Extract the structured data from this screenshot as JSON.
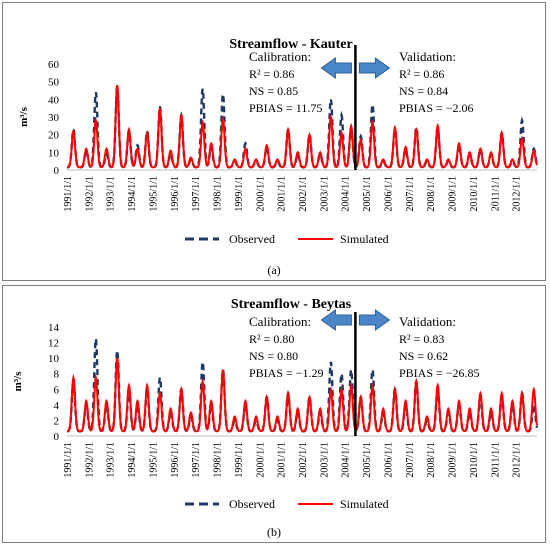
{
  "chart_data": [
    {
      "type": "line",
      "title": "Streamflow - Kauter",
      "ylabel": "m³/s",
      "ylim": [
        0,
        60
      ],
      "yticks": [
        0,
        10,
        20,
        30,
        40,
        50,
        60
      ],
      "xlim": [
        1991.0,
        2013.0
      ],
      "xticklabels": [
        "1991/1/1",
        "1992/1/1",
        "1993/1/1",
        "1994/1/1",
        "1995/1/1",
        "1996/1/1",
        "1997/1/1",
        "1998/1/1",
        "1999/1/1",
        "2000/1/1",
        "2001/1/1",
        "2002/1/1",
        "2003/1/1",
        "2004/1/1",
        "2005/1/1",
        "2006/1/1",
        "2007/1/1",
        "2008/1/1",
        "2009/1/1",
        "2010/1/1",
        "2011/1/1",
        "2012/1/1"
      ],
      "split_year": 2004.5,
      "series": [
        {
          "name": "Observed",
          "color": "#1f3864",
          "style": "dashed",
          "peaks": [
            [
              1991.3,
              23
            ],
            [
              1991.9,
              11
            ],
            [
              1992.35,
              44
            ],
            [
              1992.85,
              9
            ],
            [
              1993.35,
              47
            ],
            [
              1993.9,
              22
            ],
            [
              1994.3,
              14
            ],
            [
              1994.75,
              22
            ],
            [
              1995.35,
              36
            ],
            [
              1995.85,
              9
            ],
            [
              1996.35,
              31
            ],
            [
              1996.8,
              6
            ],
            [
              1997.35,
              46
            ],
            [
              1997.75,
              13
            ],
            [
              1998.3,
              43
            ],
            [
              1998.85,
              5
            ],
            [
              1999.35,
              15
            ],
            [
              1999.85,
              5
            ],
            [
              2000.35,
              13
            ],
            [
              2000.85,
              5
            ],
            [
              2001.35,
              23
            ],
            [
              2001.8,
              9
            ],
            [
              2002.35,
              20
            ],
            [
              2002.85,
              9
            ],
            [
              2003.35,
              40
            ],
            [
              2003.85,
              31
            ],
            [
              2004.3,
              24
            ],
            [
              2004.75,
              19
            ],
            [
              2005.3,
              37
            ],
            [
              2005.8,
              5
            ],
            [
              2006.35,
              23
            ],
            [
              2006.85,
              12
            ],
            [
              2007.35,
              24
            ],
            [
              2007.85,
              5
            ],
            [
              2008.35,
              24
            ],
            [
              2008.85,
              5
            ],
            [
              2009.35,
              14
            ],
            [
              2009.85,
              9
            ],
            [
              2010.35,
              12
            ],
            [
              2010.85,
              9
            ],
            [
              2011.35,
              21
            ],
            [
              2011.85,
              5
            ],
            [
              2012.3,
              28
            ],
            [
              2012.85,
              12
            ]
          ]
        },
        {
          "name": "Simulated",
          "color": "#ff0000",
          "style": "solid",
          "peaks": [
            [
              1991.3,
              22
            ],
            [
              1991.9,
              12
            ],
            [
              1992.35,
              28
            ],
            [
              1992.85,
              12
            ],
            [
              1993.35,
              48
            ],
            [
              1993.9,
              23
            ],
            [
              1994.3,
              12
            ],
            [
              1994.75,
              21
            ],
            [
              1995.35,
              35
            ],
            [
              1995.85,
              11
            ],
            [
              1996.35,
              31
            ],
            [
              1996.8,
              7
            ],
            [
              1997.35,
              27
            ],
            [
              1997.75,
              15
            ],
            [
              1998.3,
              29
            ],
            [
              1998.85,
              6
            ],
            [
              1999.35,
              12
            ],
            [
              1999.85,
              6
            ],
            [
              2000.35,
              14
            ],
            [
              2000.85,
              6
            ],
            [
              2001.35,
              23
            ],
            [
              2001.8,
              10
            ],
            [
              2002.35,
              20
            ],
            [
              2002.85,
              10
            ],
            [
              2003.35,
              30
            ],
            [
              2003.85,
              21
            ],
            [
              2004.3,
              25
            ],
            [
              2004.75,
              17
            ],
            [
              2005.3,
              27
            ],
            [
              2005.8,
              6
            ],
            [
              2006.35,
              24
            ],
            [
              2006.85,
              13
            ],
            [
              2007.35,
              23
            ],
            [
              2007.85,
              6
            ],
            [
              2008.35,
              25
            ],
            [
              2008.85,
              6
            ],
            [
              2009.35,
              15
            ],
            [
              2009.85,
              10
            ],
            [
              2010.35,
              12
            ],
            [
              2010.85,
              10
            ],
            [
              2011.35,
              21
            ],
            [
              2011.85,
              6
            ],
            [
              2012.3,
              18
            ],
            [
              2012.85,
              11
            ]
          ]
        }
      ],
      "annotations": {
        "calibration": {
          "header": "Calibration:",
          "r2": "R² = 0.86",
          "ns": "NS = 0.85",
          "pbias": "PBIAS = 11.75"
        },
        "validation": {
          "header": "Validation:",
          "r2": "R² = 0.86",
          "ns": "NS = 0.84",
          "pbias": "PBIAS = −2.06"
        }
      },
      "legend": "bottom",
      "panel_label": "(a)"
    },
    {
      "type": "line",
      "title": "Streamflow - Beytas",
      "ylabel": "m³/s",
      "ylim": [
        0,
        14
      ],
      "yticks": [
        0,
        2,
        4,
        6,
        8,
        10,
        12,
        14
      ],
      "xlim": [
        1991.0,
        2013.0
      ],
      "xticklabels": [
        "1991/1/1",
        "1992/1/1",
        "1993/1/1",
        "1994/1/1",
        "1995/1/1",
        "1996/1/1",
        "1997/1/1",
        "1998/1/1",
        "1999/1/1",
        "2000/1/1",
        "2001/1/1",
        "2002/1/1",
        "2003/1/1",
        "2004/1/1",
        "2005/1/1",
        "2006/1/1",
        "2007/1/1",
        "2008/1/1",
        "2009/1/1",
        "2010/1/1",
        "2011/1/1",
        "2012/1/1"
      ],
      "split_year": 2004.5,
      "series": [
        {
          "name": "Observed",
          "color": "#1f3864",
          "style": "dashed",
          "peaks": [
            [
              1991.3,
              7
            ],
            [
              1991.9,
              4
            ],
            [
              1992.35,
              12.5
            ],
            [
              1992.85,
              4
            ],
            [
              1993.35,
              11
            ],
            [
              1993.9,
              6
            ],
            [
              1994.3,
              4
            ],
            [
              1994.75,
              6
            ],
            [
              1995.35,
              7.5
            ],
            [
              1995.85,
              3
            ],
            [
              1996.35,
              6
            ],
            [
              1996.8,
              2.5
            ],
            [
              1997.35,
              9.5
            ],
            [
              1997.75,
              4
            ],
            [
              1998.3,
              8.5
            ],
            [
              1998.85,
              2
            ],
            [
              1999.35,
              4
            ],
            [
              1999.85,
              2
            ],
            [
              2000.35,
              5
            ],
            [
              2000.85,
              2
            ],
            [
              2001.35,
              5.5
            ],
            [
              2001.8,
              3
            ],
            [
              2002.35,
              5
            ],
            [
              2002.85,
              3
            ],
            [
              2003.35,
              9.5
            ],
            [
              2003.85,
              8
            ],
            [
              2004.3,
              8.5
            ],
            [
              2004.75,
              5
            ],
            [
              2005.3,
              8.5
            ],
            [
              2005.8,
              3
            ],
            [
              2006.35,
              6
            ],
            [
              2006.85,
              4
            ],
            [
              2007.35,
              7
            ],
            [
              2007.85,
              2
            ],
            [
              2008.35,
              6
            ],
            [
              2008.85,
              3
            ],
            [
              2009.35,
              4
            ],
            [
              2009.85,
              3
            ],
            [
              2010.35,
              5
            ],
            [
              2010.85,
              3
            ],
            [
              2011.35,
              5
            ],
            [
              2011.85,
              4
            ],
            [
              2012.3,
              5.5
            ],
            [
              2012.85,
              4
            ]
          ]
        },
        {
          "name": "Simulated",
          "color": "#ff0000",
          "style": "solid",
          "peaks": [
            [
              1991.3,
              7.5
            ],
            [
              1991.9,
              4.5
            ],
            [
              1992.35,
              7.5
            ],
            [
              1992.85,
              4.5
            ],
            [
              1993.35,
              10
            ],
            [
              1993.9,
              6.5
            ],
            [
              1994.3,
              4.5
            ],
            [
              1994.75,
              6.5
            ],
            [
              1995.35,
              5.5
            ],
            [
              1995.85,
              3.5
            ],
            [
              1996.35,
              6
            ],
            [
              1996.8,
              3
            ],
            [
              1997.35,
              7
            ],
            [
              1997.75,
              4.5
            ],
            [
              1998.3,
              8.5
            ],
            [
              1998.85,
              2.5
            ],
            [
              1999.35,
              4.5
            ],
            [
              1999.85,
              2.5
            ],
            [
              2000.35,
              5
            ],
            [
              2000.85,
              2.5
            ],
            [
              2001.35,
              5.5
            ],
            [
              2001.8,
              3.5
            ],
            [
              2002.35,
              5
            ],
            [
              2002.85,
              3.5
            ],
            [
              2003.35,
              6
            ],
            [
              2003.85,
              6
            ],
            [
              2004.3,
              6.5
            ],
            [
              2004.75,
              5
            ],
            [
              2005.3,
              6.5
            ],
            [
              2005.8,
              3.5
            ],
            [
              2006.35,
              6
            ],
            [
              2006.85,
              4.5
            ],
            [
              2007.35,
              7
            ],
            [
              2007.85,
              2.5
            ],
            [
              2008.35,
              6.5
            ],
            [
              2008.85,
              3.5
            ],
            [
              2009.35,
              4.5
            ],
            [
              2009.85,
              3.5
            ],
            [
              2010.35,
              5.5
            ],
            [
              2010.85,
              3.5
            ],
            [
              2011.35,
              5.5
            ],
            [
              2011.85,
              4.5
            ],
            [
              2012.3,
              5.5
            ],
            [
              2012.85,
              6
            ]
          ]
        }
      ],
      "annotations": {
        "calibration": {
          "header": "Calibration:",
          "r2": "R² = 0.80",
          "ns": "NS = 0.80",
          "pbias": "PBIAS = −1.29"
        },
        "validation": {
          "header": "Validation:",
          "r2": "R² = 0.83",
          "ns": "NS = 0.62",
          "pbias": "PBIAS = −26.85"
        }
      },
      "legend": "bottom",
      "panel_label": "(b)"
    }
  ]
}
